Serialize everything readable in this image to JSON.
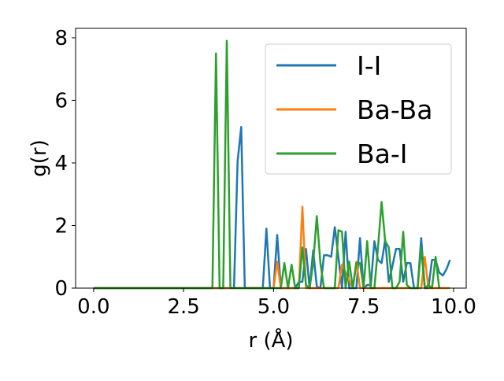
{
  "chart_data": {
    "type": "line",
    "title": "",
    "xlabel": "r (Å)",
    "ylabel": "g(r)",
    "xlim": [
      -0.5,
      10.35
    ],
    "ylim": [
      0,
      8.3
    ],
    "xticks": [
      0.0,
      2.5,
      5.0,
      7.5,
      10.0
    ],
    "xtick_labels": [
      "0.0",
      "2.5",
      "5.0",
      "7.5",
      "10.0"
    ],
    "yticks": [
      0,
      2,
      4,
      6,
      8
    ],
    "ytick_labels": [
      "0",
      "2",
      "4",
      "6",
      "8"
    ],
    "grid": false,
    "legend": "top-right",
    "series": [
      {
        "name": "I-I",
        "color": "#1f77b4",
        "x": [
          0.0,
          3.9,
          4.0,
          4.1,
          4.2,
          4.7,
          4.8,
          4.9,
          5.0,
          5.1,
          5.2,
          5.3,
          5.4,
          5.5,
          5.6,
          5.7,
          5.8,
          5.9,
          6.0,
          6.1,
          6.2,
          6.3,
          6.4,
          6.5,
          6.6,
          6.7,
          6.8,
          6.9,
          7.0,
          7.1,
          7.2,
          7.3,
          7.4,
          7.5,
          7.6,
          7.7,
          7.8,
          7.9,
          8.0,
          8.1,
          8.2,
          8.3,
          8.4,
          8.5,
          8.6,
          8.7,
          8.8,
          8.9,
          9.0,
          9.1,
          9.2,
          9.3,
          9.4,
          9.5,
          9.6,
          9.7,
          9.8,
          9.9
        ],
        "y": [
          0,
          0,
          4.05,
          5.15,
          0,
          0,
          1.9,
          0,
          0,
          1.7,
          0,
          0,
          0,
          0,
          0,
          0.2,
          0.2,
          1.25,
          0,
          1.2,
          0.05,
          0,
          1.05,
          1.05,
          1.0,
          1.95,
          1.0,
          0,
          1.8,
          0,
          0,
          0,
          1.6,
          0,
          0.1,
          0.1,
          1.5,
          0.9,
          0.8,
          1.55,
          0.2,
          0.7,
          1.25,
          1.25,
          0.2,
          0.8,
          0.8,
          0,
          0,
          1.6,
          0,
          0,
          0.9,
          0.9,
          0.5,
          0.4,
          0.6,
          0.9
        ]
      },
      {
        "name": "Ba-Ba",
        "color": "#ff7f0e",
        "x": [
          0.0,
          5.0,
          5.1,
          5.2,
          5.7,
          5.8,
          5.9,
          6.8,
          6.9,
          7.2,
          7.3,
          7.4,
          7.5,
          9.1,
          9.2,
          9.3,
          9.4,
          9.9
        ],
        "y": [
          0,
          0,
          0.85,
          0,
          0,
          2.6,
          0,
          0,
          0.75,
          0,
          0.85,
          0,
          0,
          0,
          1.0,
          0,
          0,
          0
        ]
      },
      {
        "name": "Ba-I",
        "color": "#2ca02c",
        "x": [
          0.0,
          3.3,
          3.4,
          3.5,
          3.6,
          3.7,
          3.8,
          5.2,
          5.3,
          5.4,
          5.5,
          5.6,
          5.7,
          5.8,
          5.9,
          6.0,
          6.1,
          6.2,
          6.3,
          6.4,
          6.5,
          6.6,
          6.7,
          6.8,
          6.9,
          7.0,
          7.1,
          7.2,
          7.3,
          7.4,
          7.5,
          7.6,
          7.7,
          7.8,
          7.9,
          8.0,
          8.1,
          8.2,
          8.3,
          8.4,
          8.5,
          8.6,
          8.7,
          8.8,
          8.9,
          9.0,
          9.1,
          9.2,
          9.3,
          9.4,
          9.5,
          9.6
        ],
        "y": [
          0,
          0,
          7.5,
          0,
          0,
          7.9,
          0,
          0,
          0.8,
          0,
          0.75,
          0,
          0,
          1.3,
          0.1,
          0,
          0.8,
          2.3,
          0.8,
          0,
          0,
          0,
          0,
          1.85,
          1.8,
          0,
          0.85,
          0,
          0.8,
          0.8,
          0,
          1.5,
          0,
          0,
          1.3,
          2.75,
          1.5,
          1.3,
          0,
          0,
          0.2,
          1.8,
          0.1,
          0,
          0,
          0,
          1.3,
          0,
          0.1,
          0,
          1.0,
          0
        ]
      }
    ]
  }
}
